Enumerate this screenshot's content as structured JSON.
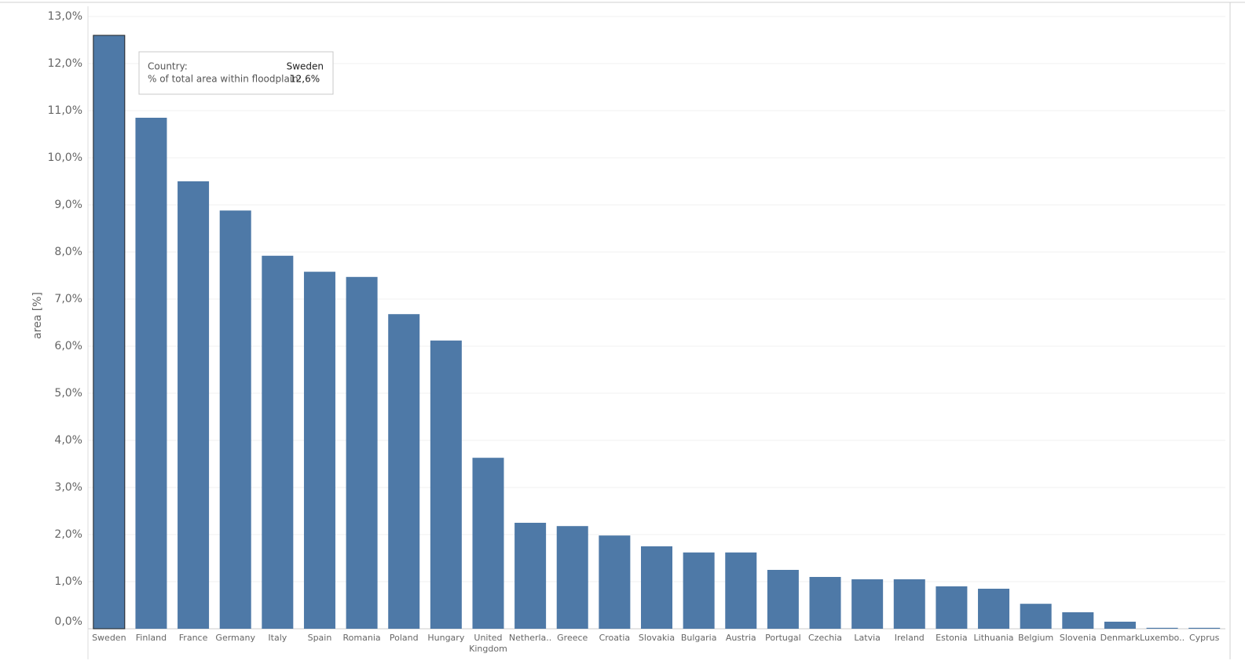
{
  "chart_data": {
    "type": "bar",
    "y_label": "area [%]",
    "categories": [
      "Sweden",
      "Finland",
      "France",
      "Germany",
      "Italy",
      "Spain",
      "Romania",
      "Poland",
      "Hungary",
      "United Kingdom",
      "Netherla..",
      "Greece",
      "Croatia",
      "Slovakia",
      "Bulgaria",
      "Austria",
      "Portugal",
      "Czechia",
      "Latvia",
      "Ireland",
      "Estonia",
      "Lithuania",
      "Belgium",
      "Slovenia",
      "Denmark",
      "Luxembo..",
      "Cyprus"
    ],
    "values": [
      12.6,
      10.85,
      9.5,
      8.88,
      7.92,
      7.58,
      7.47,
      6.68,
      6.12,
      3.63,
      2.25,
      2.18,
      1.98,
      1.75,
      1.62,
      1.62,
      1.25,
      1.1,
      1.05,
      1.05,
      0.9,
      0.85,
      0.53,
      0.35,
      0.15,
      0.02,
      0.02
    ],
    "color": "#4e79a7",
    "ylim": [
      0,
      13
    ],
    "yticks": [
      {
        "value": 0,
        "label": "0,0%"
      },
      {
        "value": 1,
        "label": "1,0%"
      },
      {
        "value": 2,
        "label": "2,0%"
      },
      {
        "value": 3,
        "label": "3,0%"
      },
      {
        "value": 4,
        "label": "4,0%"
      },
      {
        "value": 5,
        "label": "5,0%"
      },
      {
        "value": 6,
        "label": "6,0%"
      },
      {
        "value": 7,
        "label": "7,0%"
      },
      {
        "value": 8,
        "label": "8,0%"
      },
      {
        "value": 9,
        "label": "9,0%"
      },
      {
        "value": 10,
        "label": "10,0%"
      },
      {
        "value": 11,
        "label": "11,0%"
      },
      {
        "value": 12,
        "label": "12,0%"
      },
      {
        "value": 13,
        "label": "13,0%"
      }
    ],
    "grid": true,
    "tooltip": {
      "rows": [
        [
          "Country:",
          "Sweden"
        ],
        [
          "% of total area within floodplain:",
          "12,6%"
        ]
      ]
    }
  }
}
